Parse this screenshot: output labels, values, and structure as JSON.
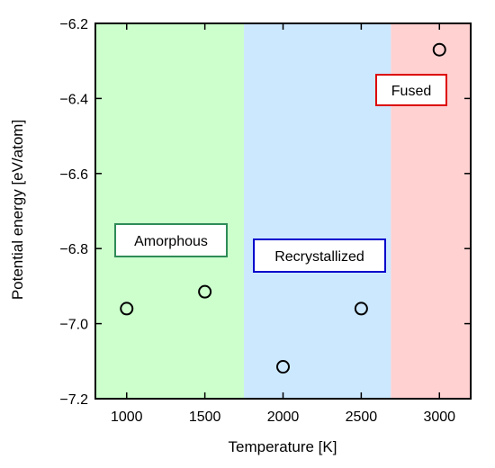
{
  "chart_data": {
    "type": "scatter",
    "title": "",
    "xlabel": "Temperature [K]",
    "ylabel": "Potential energy [eV/atom]",
    "xlim": [
      800,
      3200
    ],
    "ylim": [
      -7.2,
      -6.2
    ],
    "xticks": [
      1000,
      1500,
      2000,
      2500,
      3000
    ],
    "xtick_labels": [
      "1000",
      "1500",
      "2000",
      "2500",
      "3000"
    ],
    "yticks": [
      -6.2,
      -6.4,
      -6.6,
      -6.8,
      -7.0,
      -7.2
    ],
    "ytick_labels": [
      "−6.2",
      "−6.4",
      "−6.6",
      "−6.8",
      "−7.0",
      "−7.2"
    ],
    "grid": false,
    "marker": "open-circle",
    "points": [
      {
        "x": 1000,
        "y": -6.96
      },
      {
        "x": 1500,
        "y": -6.915
      },
      {
        "x": 2000,
        "y": -7.115
      },
      {
        "x": 2500,
        "y": -6.96
      },
      {
        "x": 3000,
        "y": -6.27
      }
    ],
    "regions": [
      {
        "label": "Amorphous",
        "x_start": 800,
        "x_end": 1750,
        "fill": "#ccffcc",
        "border": "#2e8b57"
      },
      {
        "label": "Recrystallized",
        "x_start": 1750,
        "x_end": 2690,
        "fill": "#cce8ff",
        "border": "#0000cc"
      },
      {
        "label": "Fused",
        "x_start": 2690,
        "x_end": 3200,
        "fill": "#ffd1d1",
        "border": "#dd0000"
      }
    ]
  }
}
